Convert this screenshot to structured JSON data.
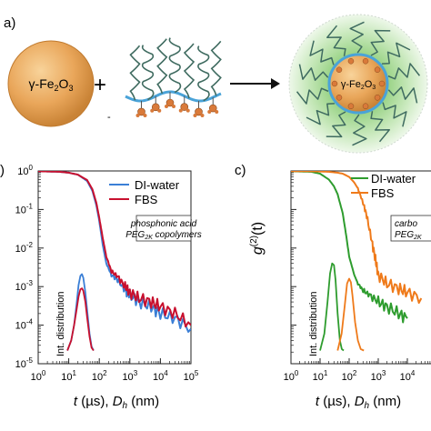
{
  "panel_a": {
    "label": "a)",
    "particle_label": "γ-Fe",
    "particle_sub1": "2",
    "particle_mid": "O",
    "particle_sub2": "3",
    "plus": "+",
    "small_mark": "-",
    "hybrid_label": "γ-Fe",
    "hybrid_sub1": "2",
    "hybrid_mid": "O",
    "hybrid_sub2": "3"
  },
  "colors": {
    "particle": "#e9a65a",
    "particle_edge": "#c07a2e",
    "polymer": "#3f6b60",
    "backbone": "#4aa3d8",
    "anchor": "#d97a3a",
    "halo": "#b6dfa7",
    "di_water_b": "#3b7fd6",
    "fbs_b": "#c8102e",
    "di_water_c": "#2e9c2e",
    "fbs_c": "#ef7a1a"
  },
  "chart_data": [
    {
      "type": "line",
      "panel_label": ")",
      "annotation_line1": "phosphonic acid",
      "annotation_line2": "PEG2K copolymers",
      "inset_label": "Int. distribution",
      "xlabel": "t (µs), D_h (nm)",
      "xlabel_parts": {
        "t": "t",
        "mid": " (µs), ",
        "D": "D",
        "sub": "h",
        "end": " (nm)"
      },
      "x_scale": "log",
      "y_scale": "log",
      "xlim": [
        1,
        100000
      ],
      "ylim": [
        1e-05,
        1
      ],
      "x_ticks": [
        {
          "value": 1,
          "base": "10",
          "exp": "0"
        },
        {
          "value": 10,
          "base": "10",
          "exp": "1"
        },
        {
          "value": 100,
          "base": "10",
          "exp": "2"
        },
        {
          "value": 1000,
          "base": "10",
          "exp": "3"
        },
        {
          "value": 10000,
          "base": "10",
          "exp": "4"
        },
        {
          "value": 100000,
          "base": "10",
          "exp": "5"
        }
      ],
      "y_ticks": [
        {
          "value": 1,
          "base": "10",
          "exp": "0"
        },
        {
          "value": 0.1,
          "base": "10",
          "exp": "-1"
        },
        {
          "value": 0.01,
          "base": "10",
          "exp": "-2"
        },
        {
          "value": 0.001,
          "base": "10",
          "exp": "-3"
        },
        {
          "value": 0.0001,
          "base": "10",
          "exp": "-4"
        },
        {
          "value": 1e-05,
          "base": "10",
          "exp": "-5"
        }
      ],
      "legend": "top-right",
      "series": [
        {
          "name": "DI-water",
          "color": "#3b7fd6",
          "kind": "correlation",
          "x": [
            1,
            2,
            5,
            10,
            20,
            40,
            60,
            80,
            100,
            130,
            170,
            250,
            400,
            700,
            1000,
            2000,
            5000,
            10000,
            30000,
            100000
          ],
          "y": [
            0.98,
            0.97,
            0.95,
            0.9,
            0.8,
            0.55,
            0.3,
            0.13,
            0.05,
            0.012,
            0.004,
            0.002,
            0.0015,
            0.0008,
            0.0006,
            0.0004,
            0.0003,
            0.0002,
            0.00015,
            8e-05
          ]
        },
        {
          "name": "FBS",
          "color": "#c8102e",
          "kind": "correlation",
          "x": [
            1,
            2,
            5,
            10,
            20,
            40,
            60,
            80,
            100,
            130,
            170,
            250,
            400,
            700,
            1000,
            2000,
            5000,
            10000,
            30000,
            100000
          ],
          "y": [
            0.98,
            0.97,
            0.95,
            0.9,
            0.8,
            0.58,
            0.33,
            0.15,
            0.06,
            0.018,
            0.006,
            0.0025,
            0.0018,
            0.001,
            0.0007,
            0.0005,
            0.0004,
            0.0003,
            0.0002,
            0.0001
          ]
        },
        {
          "name": "",
          "color": "#3b7fd6",
          "kind": "distribution",
          "x": [
            9,
            12,
            15,
            18,
            21,
            24,
            27,
            30,
            35,
            40,
            48,
            56,
            65
          ],
          "y": [
            2.2e-05,
            4e-05,
            0.0001,
            0.00035,
            0.0011,
            0.0019,
            0.0021,
            0.0017,
            0.0007,
            0.00025,
            6e-05,
            2.8e-05,
            2.2e-05
          ]
        },
        {
          "name": "",
          "color": "#c8102e",
          "kind": "distribution",
          "x": [
            9,
            12,
            15,
            18,
            21,
            24,
            27,
            30,
            35,
            40,
            48,
            56,
            65
          ],
          "y": [
            2.2e-05,
            4e-05,
            0.0001,
            0.00025,
            0.00055,
            0.00085,
            0.0009,
            0.00078,
            0.0004,
            0.00016,
            5e-05,
            2.6e-05,
            2.2e-05
          ]
        }
      ]
    },
    {
      "type": "line",
      "panel_label": "c)",
      "ylabel_parts": {
        "g": "g",
        "sup": "(2)",
        "end": "(t)"
      },
      "annotation_line1": "carbo",
      "annotation_line2": "PEG2K",
      "inset_label": "Int. distribution",
      "xlabel_parts": {
        "t": "t",
        "mid": " (µs), ",
        "D": "D",
        "sub": "h",
        "end": " (nm)"
      },
      "x_scale": "log",
      "y_scale": "log",
      "xlim": [
        1,
        100000
      ],
      "ylim": [
        1e-05,
        1
      ],
      "x_ticks": [
        {
          "value": 1,
          "base": "10",
          "exp": "0"
        },
        {
          "value": 10,
          "base": "10",
          "exp": "1"
        },
        {
          "value": 100,
          "base": "10",
          "exp": "2"
        },
        {
          "value": 1000,
          "base": "10",
          "exp": "3"
        },
        {
          "value": 10000,
          "base": "10",
          "exp": "4"
        }
      ],
      "legend": "top-right",
      "series": [
        {
          "name": "DI-water",
          "color": "#2e9c2e",
          "kind": "correlation",
          "x": [
            1,
            2,
            5,
            10,
            20,
            30,
            40,
            60,
            80,
            100,
            150,
            200,
            300,
            500,
            1000,
            2000,
            5000,
            10000
          ],
          "y": [
            0.98,
            0.97,
            0.95,
            0.85,
            0.6,
            0.4,
            0.25,
            0.08,
            0.02,
            0.006,
            0.002,
            0.0012,
            0.0008,
            0.0006,
            0.0004,
            0.0003,
            0.0002,
            0.00015
          ]
        },
        {
          "name": "FBS",
          "color": "#ef7a1a",
          "kind": "correlation",
          "x": [
            1,
            2,
            5,
            10,
            20,
            40,
            60,
            100,
            150,
            200,
            300,
            400,
            600,
            800,
            1000,
            2000,
            5000,
            10000,
            30000
          ],
          "y": [
            0.99,
            0.99,
            0.98,
            0.97,
            0.95,
            0.9,
            0.85,
            0.7,
            0.5,
            0.35,
            0.15,
            0.07,
            0.015,
            0.005,
            0.002,
            0.0012,
            0.0009,
            0.0007,
            0.0005
          ]
        },
        {
          "name": "",
          "color": "#2e9c2e",
          "kind": "distribution",
          "x": [
            10,
            14,
            18,
            22,
            26,
            30,
            34,
            40,
            48,
            56,
            65
          ],
          "y": [
            2.2e-05,
            6e-05,
            0.0004,
            0.0022,
            0.004,
            0.0036,
            0.0015,
            0.0002,
            4e-05,
            2.4e-05,
            2.2e-05
          ]
        },
        {
          "name": "",
          "color": "#ef7a1a",
          "kind": "distribution",
          "x": [
            40,
            55,
            70,
            85,
            100,
            115,
            130,
            160,
            200,
            250,
            320
          ],
          "y": [
            2.2e-05,
            6e-05,
            0.0003,
            0.0012,
            0.0016,
            0.0013,
            0.0006,
            0.00012,
            4e-05,
            2.4e-05,
            2.2e-05
          ]
        }
      ]
    }
  ]
}
